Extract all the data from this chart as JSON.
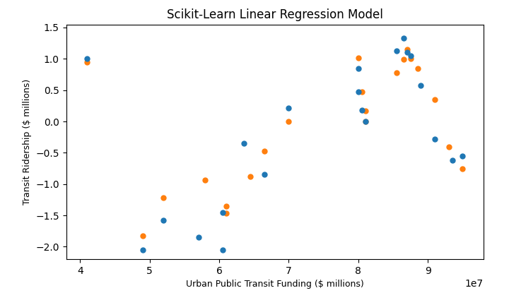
{
  "title": "Scikit-Learn Linear Regression Model",
  "xlabel": "Urban Public Transit Funding ($ millions)",
  "ylabel": "Transit Ridership ($ millions)",
  "xlim": [
    38000000.0,
    98000000.0
  ],
  "ylim": [
    -2.2,
    1.55
  ],
  "blue_points": [
    [
      41000000.0,
      1.0
    ],
    [
      49000000.0,
      -2.05
    ],
    [
      52000000.0,
      -1.58
    ],
    [
      57000000.0,
      -1.85
    ],
    [
      60500000.0,
      -2.05
    ],
    [
      60500000.0,
      -1.45
    ],
    [
      63500000.0,
      -0.35
    ],
    [
      66500000.0,
      -0.85
    ],
    [
      70000000.0,
      0.22
    ],
    [
      80000000.0,
      0.85
    ],
    [
      80000000.0,
      0.47
    ],
    [
      80500000.0,
      0.18
    ],
    [
      81000000.0,
      0.0
    ],
    [
      85500000.0,
      1.13
    ],
    [
      86500000.0,
      1.33
    ],
    [
      87000000.0,
      1.1
    ],
    [
      87500000.0,
      1.05
    ],
    [
      89000000.0,
      0.57
    ],
    [
      91000000.0,
      -0.28
    ],
    [
      93500000.0,
      -0.62
    ],
    [
      95000000.0,
      -0.55
    ]
  ],
  "orange_points": [
    [
      41000000.0,
      0.95
    ],
    [
      49000000.0,
      -1.83
    ],
    [
      52000000.0,
      -1.22
    ],
    [
      58000000.0,
      -0.93
    ],
    [
      61000000.0,
      -1.35
    ],
    [
      61000000.0,
      -1.47
    ],
    [
      64500000.0,
      -0.88
    ],
    [
      66500000.0,
      -0.47
    ],
    [
      70000000.0,
      0.0
    ],
    [
      80000000.0,
      1.01
    ],
    [
      80500000.0,
      0.47
    ],
    [
      81000000.0,
      0.17
    ],
    [
      81000000.0,
      0.0
    ],
    [
      85500000.0,
      0.78
    ],
    [
      86500000.0,
      0.99
    ],
    [
      87000000.0,
      1.15
    ],
    [
      87500000.0,
      1.0
    ],
    [
      88500000.0,
      0.85
    ],
    [
      91000000.0,
      0.35
    ],
    [
      93000000.0,
      -0.4
    ],
    [
      95000000.0,
      -0.75
    ]
  ],
  "blue_color": "#1f77b4",
  "orange_color": "#ff7f0e",
  "marker_size": 25,
  "title_fontsize": 12,
  "label_fontsize": 9
}
